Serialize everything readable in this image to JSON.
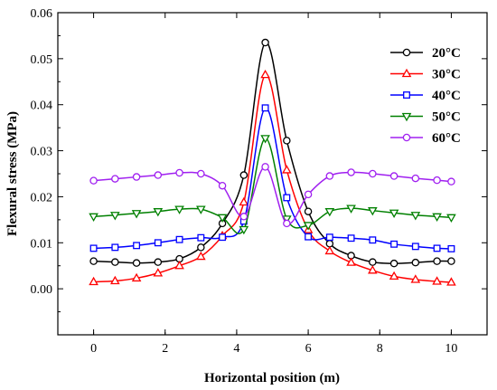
{
  "chart_data": {
    "type": "line",
    "title": "",
    "xlabel": "Horizontal position (m)",
    "ylabel": "Flexural stress (MPa)",
    "xlim": [
      -1,
      11
    ],
    "ylim": [
      -0.01,
      0.06
    ],
    "x_ticks": [
      "0",
      "2",
      "4",
      "6",
      "8",
      "10"
    ],
    "y_ticks": [
      "0.00",
      "0.01",
      "0.02",
      "0.03",
      "0.04",
      "0.05",
      "0.06"
    ],
    "legend_position": "top-right",
    "grid": false,
    "series": [
      {
        "name": "20°C",
        "color": "#000000",
        "marker": "circle",
        "x": [
          0,
          0.6,
          1.2,
          1.8,
          2.4,
          3.0,
          3.6,
          4.2,
          4.8,
          5.4,
          6.0,
          6.6,
          7.2,
          7.8,
          8.4,
          9.0,
          9.6,
          10.0
        ],
        "y": [
          0.006,
          0.0058,
          0.0056,
          0.0058,
          0.0065,
          0.009,
          0.0142,
          0.0247,
          0.0535,
          0.0322,
          0.0168,
          0.0098,
          0.0072,
          0.0058,
          0.0055,
          0.0057,
          0.006,
          0.006
        ]
      },
      {
        "name": "30°C",
        "color": "#ff0000",
        "marker": "triangle-up",
        "x": [
          0,
          0.6,
          1.2,
          1.8,
          2.4,
          3.0,
          3.6,
          4.2,
          4.8,
          5.4,
          6.0,
          6.6,
          7.2,
          7.8,
          8.4,
          9.0,
          9.6,
          10.0
        ],
        "y": [
          0.0015,
          0.0017,
          0.0023,
          0.0034,
          0.005,
          0.007,
          0.0115,
          0.0188,
          0.0465,
          0.0258,
          0.0128,
          0.0082,
          0.0057,
          0.004,
          0.0027,
          0.002,
          0.0016,
          0.0014
        ]
      },
      {
        "name": "40°C",
        "color": "#0000ff",
        "marker": "square",
        "x": [
          0,
          0.6,
          1.2,
          1.8,
          2.4,
          3.0,
          3.6,
          4.2,
          4.8,
          5.4,
          6.0,
          6.6,
          7.2,
          7.8,
          8.4,
          9.0,
          9.6,
          10.0
        ],
        "y": [
          0.0088,
          0.009,
          0.0094,
          0.01,
          0.0107,
          0.0111,
          0.0112,
          0.0147,
          0.0393,
          0.0198,
          0.0113,
          0.0112,
          0.011,
          0.0106,
          0.0097,
          0.0092,
          0.0088,
          0.0087
        ]
      },
      {
        "name": "50°C",
        "color": "#008000",
        "marker": "triangle-down",
        "x": [
          0,
          0.6,
          1.2,
          1.8,
          2.4,
          3.0,
          3.6,
          4.2,
          4.8,
          5.4,
          6.0,
          6.6,
          7.2,
          7.8,
          8.4,
          9.0,
          9.6,
          10.0
        ],
        "y": [
          0.0157,
          0.016,
          0.0164,
          0.0168,
          0.0173,
          0.0173,
          0.0155,
          0.0129,
          0.0327,
          0.0152,
          0.0138,
          0.0168,
          0.0175,
          0.017,
          0.0165,
          0.016,
          0.0157,
          0.0155
        ]
      },
      {
        "name": "60°C",
        "color": "#a020f0",
        "marker": "circle",
        "x": [
          0,
          0.6,
          1.2,
          1.8,
          2.4,
          3.0,
          3.6,
          4.2,
          4.8,
          5.4,
          6.0,
          6.6,
          7.2,
          7.8,
          8.4,
          9.0,
          9.6,
          10.0
        ],
        "y": [
          0.0235,
          0.0239,
          0.0243,
          0.0247,
          0.0252,
          0.025,
          0.0224,
          0.0157,
          0.0265,
          0.0142,
          0.0205,
          0.0245,
          0.0253,
          0.025,
          0.0245,
          0.024,
          0.0236,
          0.0233
        ]
      }
    ]
  }
}
